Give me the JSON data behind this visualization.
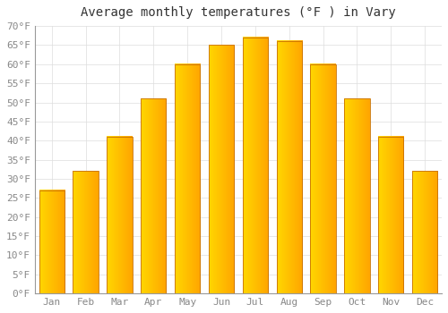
{
  "title": "Average monthly temperatures (°F ) in Vary",
  "months": [
    "Jan",
    "Feb",
    "Mar",
    "Apr",
    "May",
    "Jun",
    "Jul",
    "Aug",
    "Sep",
    "Oct",
    "Nov",
    "Dec"
  ],
  "values": [
    27,
    32,
    41,
    51,
    60,
    65,
    67,
    66,
    60,
    51,
    41,
    32
  ],
  "bar_color_main": "#FFA500",
  "bar_color_left": "#FFD700",
  "bar_color_right": "#E8890C",
  "bar_edge_color": "#C87000",
  "background_color": "#FFFFFF",
  "grid_color": "#DDDDDD",
  "ylim": [
    0,
    70
  ],
  "yticks": [
    0,
    5,
    10,
    15,
    20,
    25,
    30,
    35,
    40,
    45,
    50,
    55,
    60,
    65,
    70
  ],
  "title_fontsize": 10,
  "tick_fontsize": 8,
  "font_family": "monospace",
  "bar_width": 0.75
}
